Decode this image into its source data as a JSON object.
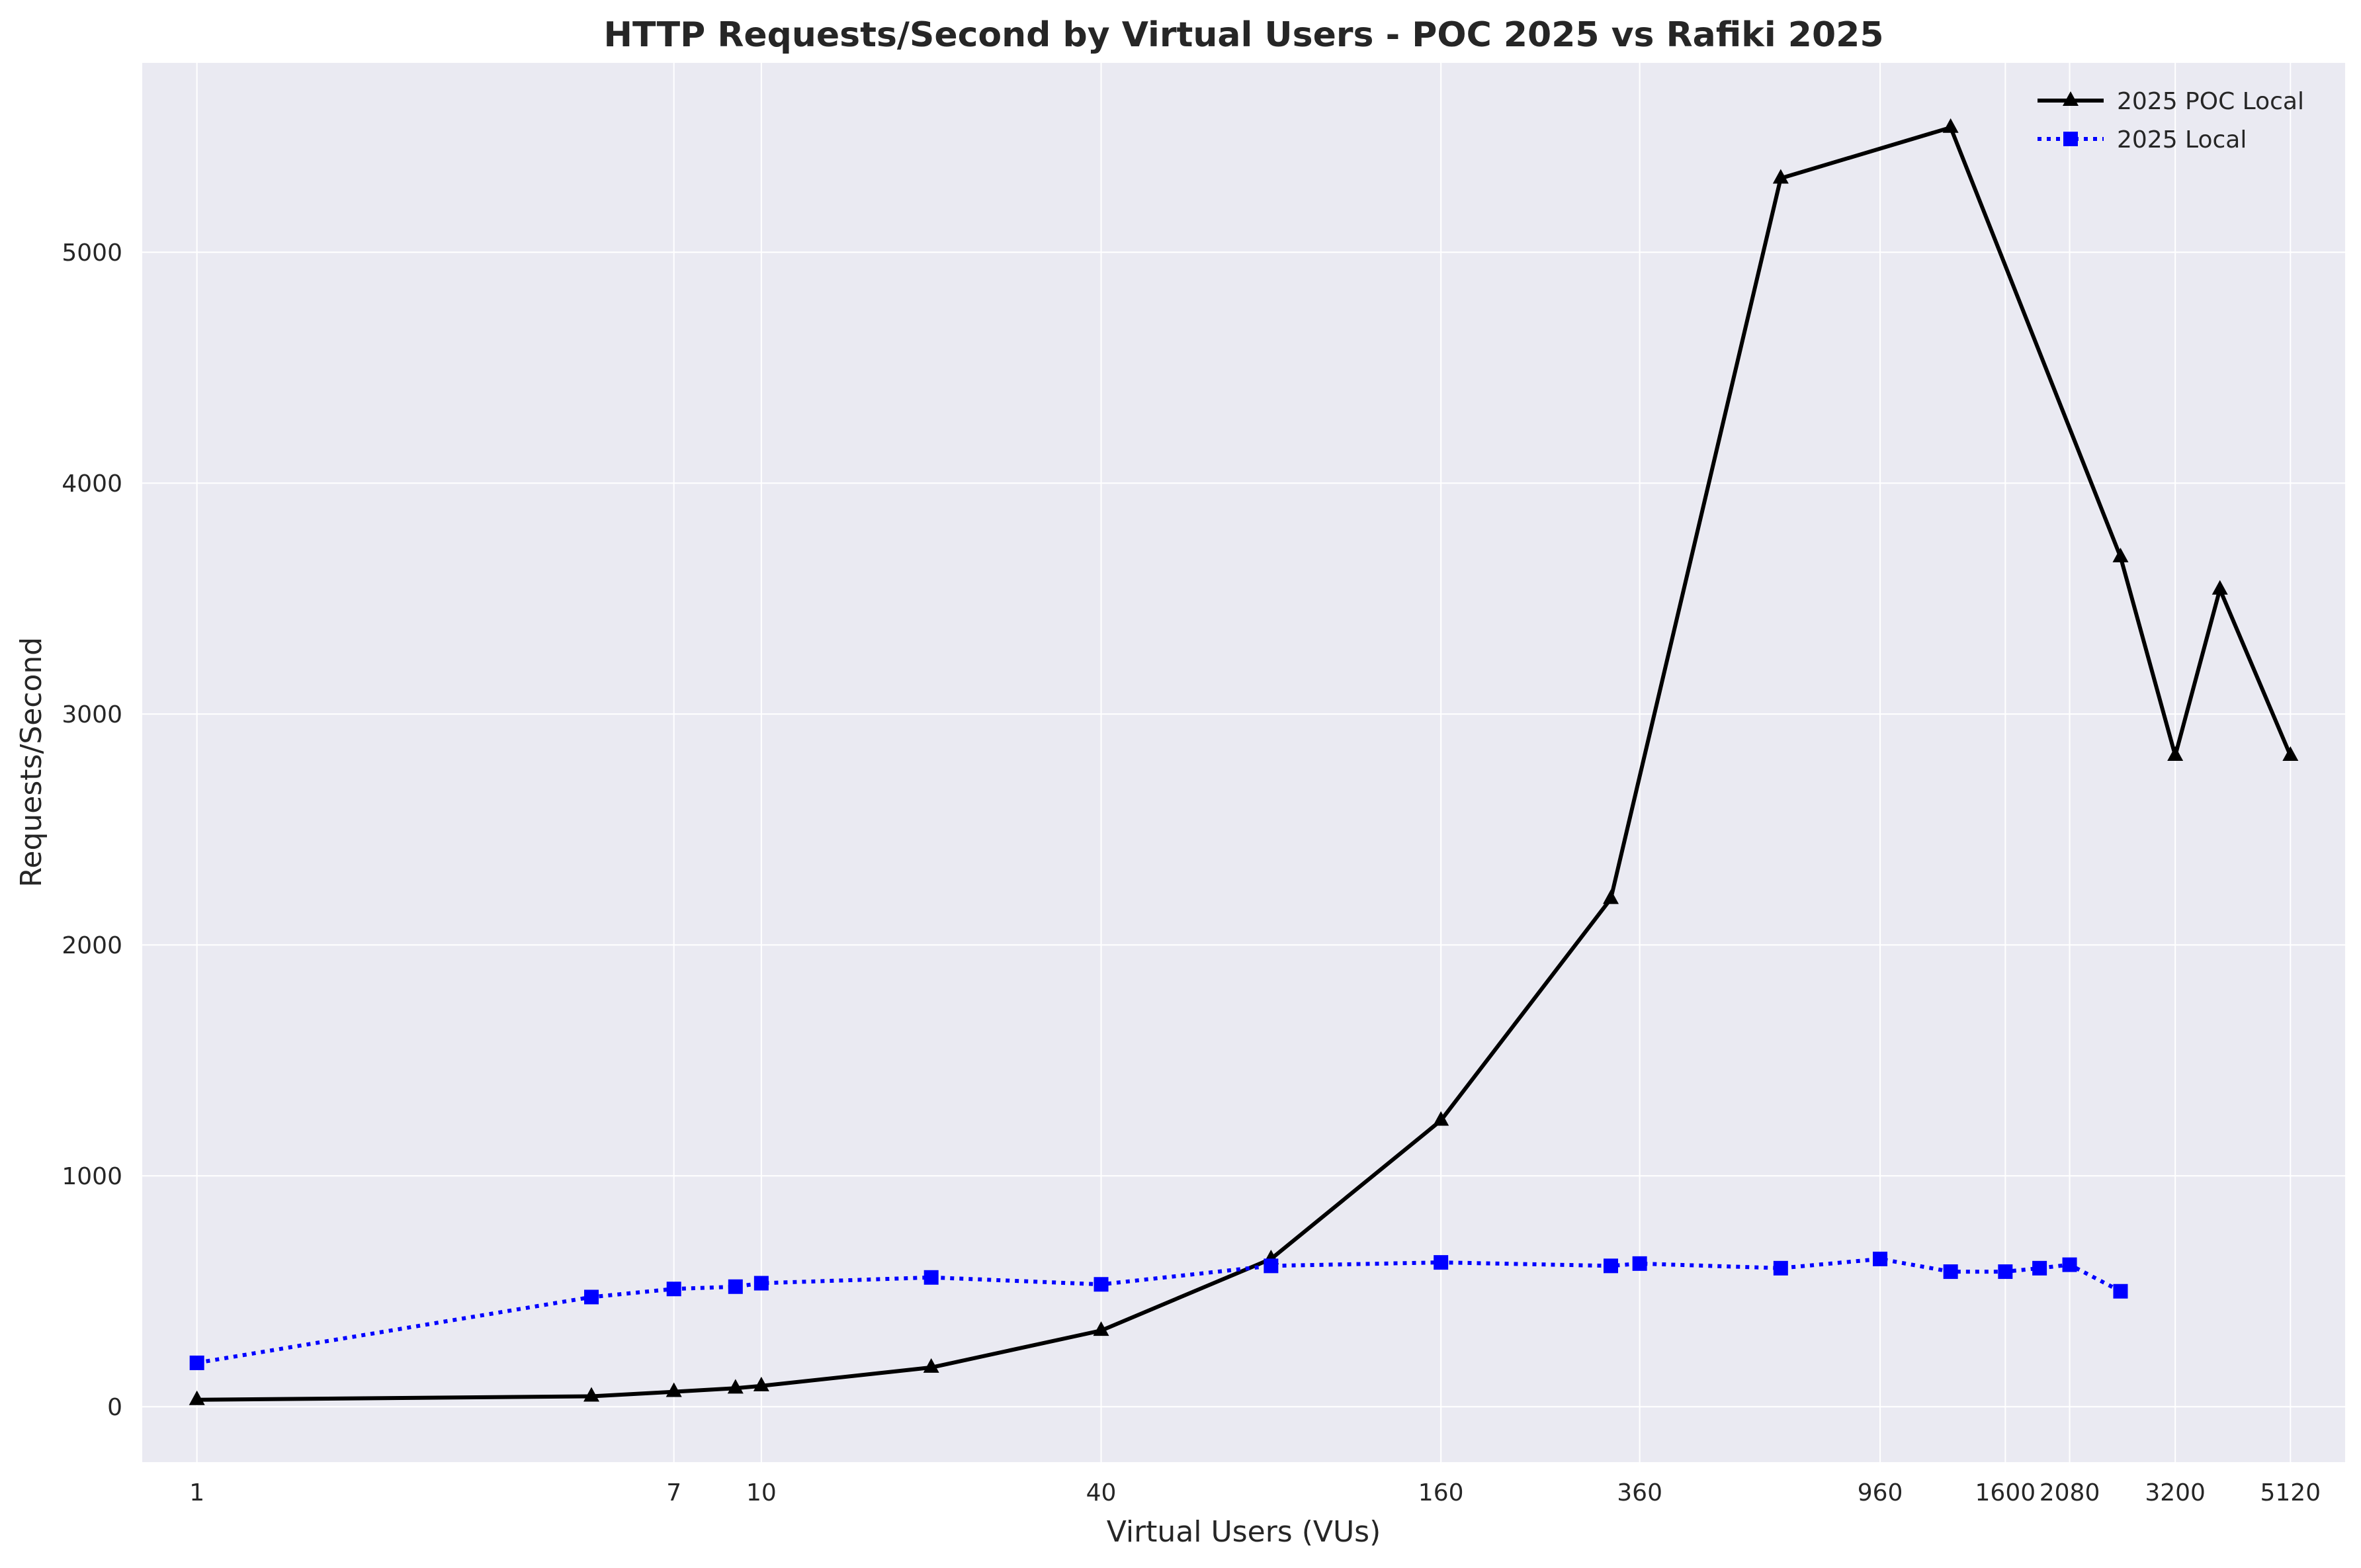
{
  "chart_data": {
    "type": "line",
    "title": "HTTP Requests/Second by Virtual Users - POC 2025 vs Rafiki 2025",
    "xlabel": "Virtual Users (VUs)",
    "ylabel": "Requests/Second",
    "x_scale": "log",
    "xlim": [
      0.8,
      6400
    ],
    "ylim": [
      -240,
      5820
    ],
    "x_ticks": [
      1,
      7,
      10,
      40,
      160,
      360,
      960,
      1600,
      2080,
      3200,
      5120
    ],
    "x_tick_labels": [
      "1",
      "7",
      "10",
      "40",
      "160",
      "360",
      "960",
      "1600",
      "2080",
      "3200",
      "5120"
    ],
    "y_ticks": [
      0,
      1000,
      2000,
      3000,
      4000,
      5000
    ],
    "y_tick_labels": [
      "0",
      "1000",
      "2000",
      "3000",
      "4000",
      "5000"
    ],
    "grid": true,
    "legend_position": "top-right",
    "series": [
      {
        "name": "2025 POC Local",
        "color": "#000000",
        "style": "solid",
        "marker": "triangle",
        "x": [
          1,
          5,
          7,
          9,
          10,
          20,
          40,
          80,
          160,
          320,
          640,
          1280,
          2560,
          3200,
          3840,
          5120
        ],
        "y": [
          30,
          45,
          65,
          80,
          90,
          170,
          330,
          640,
          1240,
          2200,
          5320,
          5540,
          3680,
          2820,
          3540,
          2820
        ]
      },
      {
        "name": "2025 Local",
        "color": "#0000ff",
        "style": "dotted",
        "marker": "square",
        "x": [
          1,
          5,
          7,
          9,
          10,
          20,
          40,
          80,
          160,
          320,
          360,
          640,
          960,
          1280,
          1600,
          1840,
          2080,
          2560
        ],
        "y": [
          190,
          475,
          510,
          520,
          535,
          560,
          530,
          610,
          625,
          610,
          620,
          600,
          640,
          585,
          585,
          600,
          615,
          500
        ]
      }
    ]
  }
}
